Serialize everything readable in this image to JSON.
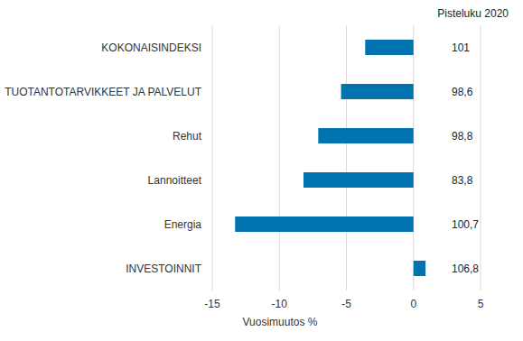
{
  "chart_data": {
    "type": "bar",
    "orientation": "horizontal",
    "categories": [
      "KOKONAISINDEKSI",
      "TUOTANTOTARVIKKEET JA PALVELUT",
      "Rehut",
      "Lannoitteet",
      "Energia",
      "INVESTOINNIT"
    ],
    "values": [
      -3.6,
      -5.4,
      -7.1,
      -8.2,
      -13.3,
      0.9
    ],
    "color": "#0073b0",
    "x_label": "Vuosimuutos %",
    "xlim": [
      -15,
      5
    ],
    "xticks": [
      -15,
      -10,
      -5,
      0,
      5
    ],
    "grid": true,
    "score_title": "Pisteluku 2020",
    "scores": [
      101,
      98.6,
      98.8,
      83.8,
      100.7,
      106.8
    ],
    "score_labels": [
      "101",
      "98,6",
      "98,8",
      "83,8",
      "100,7",
      "106,8"
    ]
  }
}
